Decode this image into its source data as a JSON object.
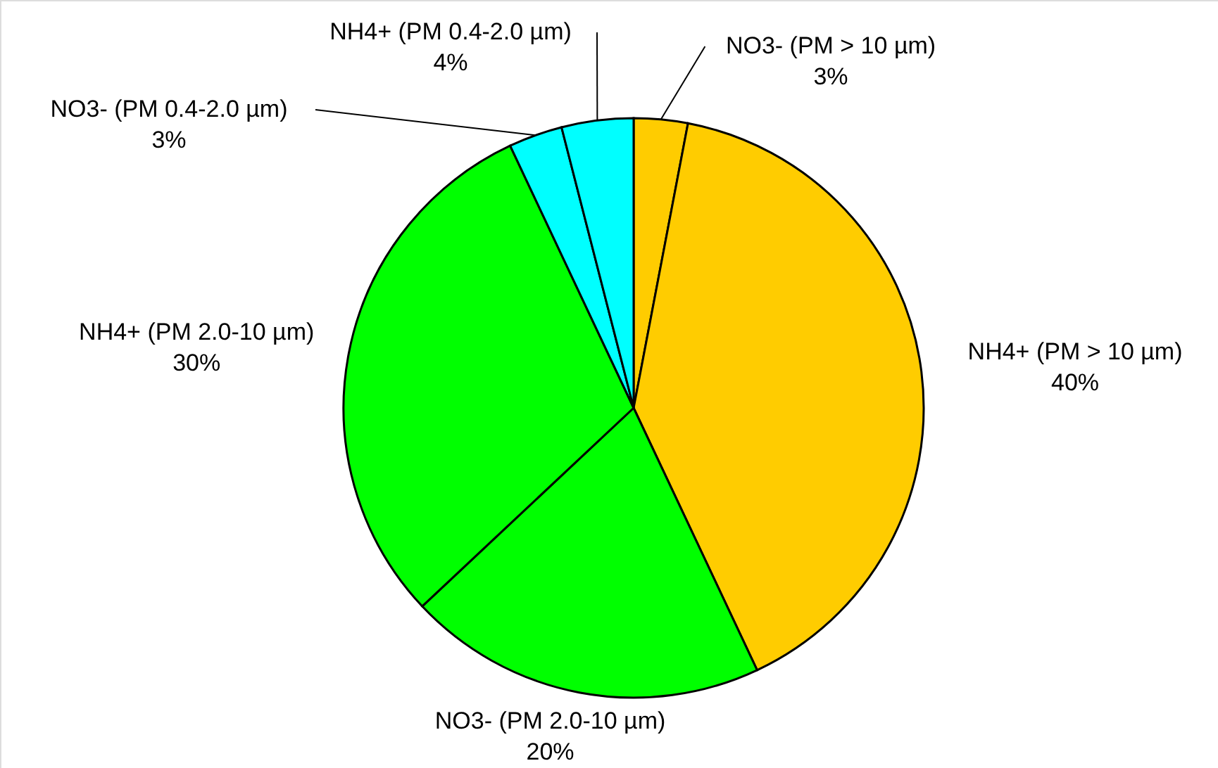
{
  "chart_data": {
    "type": "pie",
    "categories": [
      "NO3- (PM > 10 µm)",
      "NH4+ (PM > 10 µm)",
      "NO3- (PM 2.0-10 µm)",
      "NH4+ (PM 2.0-10 µm)",
      "NO3- (PM 0.4-2.0 µm)",
      "NH4+ (PM 0.4-2.0 µm)"
    ],
    "values": [
      3,
      40,
      20,
      30,
      3,
      4
    ],
    "colors": [
      "#ffcc00",
      "#ffcc00",
      "#00ff00",
      "#00ff00",
      "#00ffff",
      "#00ffff"
    ],
    "value_labels": [
      "3%",
      "40%",
      "20%",
      "30%",
      "3%",
      "4%"
    ]
  }
}
